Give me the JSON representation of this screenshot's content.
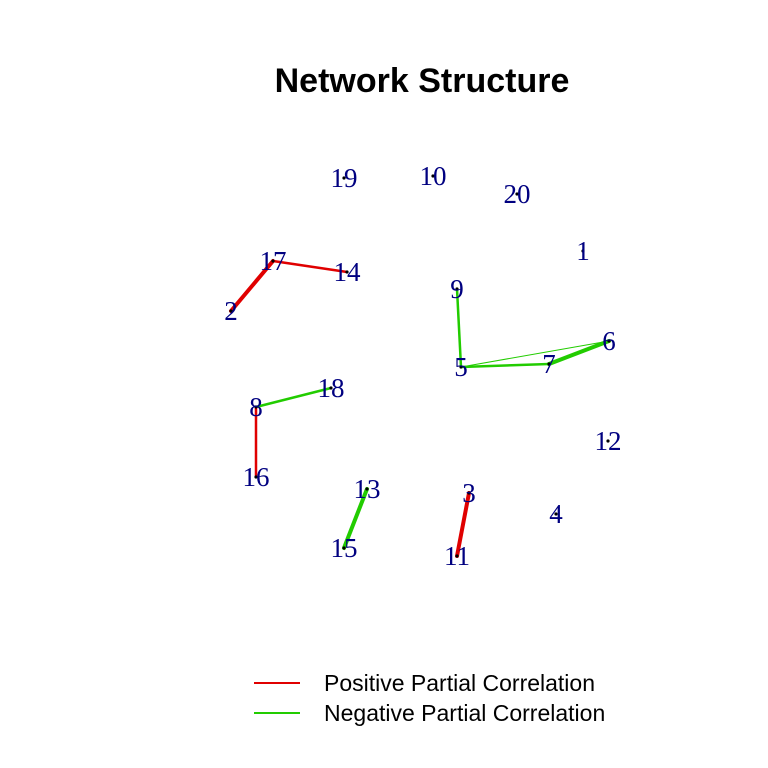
{
  "title": "Network Structure",
  "colors": {
    "positive": "#e00000",
    "negative": "#22cc00",
    "node_label": "#000080",
    "node_dot": "#000000",
    "background": "#ffffff"
  },
  "nodes": [
    {
      "id": "1",
      "label": "1"
    },
    {
      "id": "2",
      "label": "2"
    },
    {
      "id": "3",
      "label": "3"
    },
    {
      "id": "4",
      "label": "4"
    },
    {
      "id": "5",
      "label": "5"
    },
    {
      "id": "6",
      "label": "6"
    },
    {
      "id": "7",
      "label": "7"
    },
    {
      "id": "8",
      "label": "8"
    },
    {
      "id": "9",
      "label": "9"
    },
    {
      "id": "10",
      "label": "10"
    },
    {
      "id": "11",
      "label": "11"
    },
    {
      "id": "12",
      "label": "12"
    },
    {
      "id": "13",
      "label": "13"
    },
    {
      "id": "14",
      "label": "14"
    },
    {
      "id": "15",
      "label": "15"
    },
    {
      "id": "16",
      "label": "16"
    },
    {
      "id": "17",
      "label": "17"
    },
    {
      "id": "18",
      "label": "18"
    },
    {
      "id": "19",
      "label": "19"
    },
    {
      "id": "20",
      "label": "20"
    }
  ],
  "edges": [
    {
      "from": "2",
      "to": "17",
      "sign": "positive",
      "strength": "strong"
    },
    {
      "from": "17",
      "to": "14",
      "sign": "positive",
      "strength": "medium"
    },
    {
      "from": "9",
      "to": "5",
      "sign": "negative",
      "strength": "medium"
    },
    {
      "from": "5",
      "to": "7",
      "sign": "negative",
      "strength": "medium"
    },
    {
      "from": "7",
      "to": "6",
      "sign": "negative",
      "strength": "strong"
    },
    {
      "from": "5",
      "to": "6",
      "sign": "negative",
      "strength": "weak"
    },
    {
      "from": "8",
      "to": "18",
      "sign": "negative",
      "strength": "medium"
    },
    {
      "from": "8",
      "to": "16",
      "sign": "positive",
      "strength": "medium"
    },
    {
      "from": "13",
      "to": "15",
      "sign": "negative",
      "strength": "strong"
    },
    {
      "from": "3",
      "to": "11",
      "sign": "positive",
      "strength": "strong"
    }
  ],
  "legend": {
    "items": [
      {
        "label": "Positive Partial Correlation",
        "sign": "positive"
      },
      {
        "label": "Negative Partial Correlation",
        "sign": "negative"
      }
    ]
  }
}
